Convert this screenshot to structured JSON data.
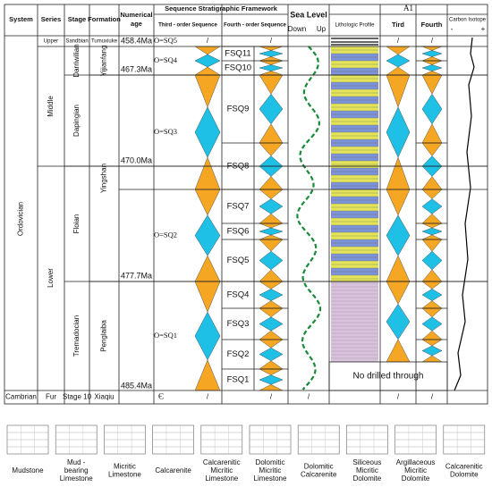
{
  "header": {
    "system": "System",
    "series": "Series",
    "stage": "Stage",
    "formation": "Formation",
    "numerical_age": [
      "Numerical",
      "age"
    ],
    "framework": "Sequence Stratigraphic Framework",
    "third_order": "Third - order Sequence",
    "fourth_order": "Fourth - order Sequence",
    "sea_level": "Sea Level",
    "down": "Down",
    "up": "Up",
    "well": "A1",
    "lithologic_profile": "Lithologic Profile",
    "tird": "Tird",
    "fourth": "Fourth",
    "carbon_isotope": "Carbon Isotope",
    "minus": "-",
    "plus": "+"
  },
  "system": "Ordovician",
  "series": [
    "Upper",
    "Middle",
    "Lower"
  ],
  "stages": [
    "Sandbian",
    "Darriwilian",
    "Dapingian",
    "Floian",
    "Tremadocian"
  ],
  "formations": [
    "Tumuxiuke",
    "Yijianfang",
    "Yingshan",
    "Penglaiba"
  ],
  "ages": [
    "458.4Ma",
    "467.3Ma",
    "470.0Ma",
    "477.7Ma",
    "485.4Ma"
  ],
  "third_order": [
    "O=SQ5",
    "O=SQ4",
    "O=SQ3",
    "O=SQ2",
    "O=SQ1"
  ],
  "fourth_order": [
    "FSQ11",
    "FSQ10",
    "FSQ9",
    "FSQ8",
    "FSQ7",
    "FSQ6",
    "FSQ5",
    "FSQ4",
    "FSQ3",
    "FSQ2",
    "FSQ1"
  ],
  "bottom_row": [
    "Cambrian",
    "Fur",
    "Stage 10",
    "Xiaqiu",
    "Є"
  ],
  "slash": "/",
  "note": "No drilled through",
  "legend": [
    [
      "Mudstone"
    ],
    [
      "Mud -",
      "bearing",
      "Limestone"
    ],
    [
      "Micritic",
      "Limestone"
    ],
    [
      "Calcarenite"
    ],
    [
      "Calcarenitic",
      "Micritic",
      "Limestone"
    ],
    [
      "Dolomitic",
      "Micritic",
      "Limestone"
    ],
    [
      "Dolomitic",
      "Calcarenite"
    ],
    [
      "Siliceous",
      "Micritic",
      "Dolomite"
    ],
    [
      "Argillaceous",
      "Micritic",
      "Dolomite"
    ],
    [
      "Calcarenitic",
      "Dolomite"
    ]
  ]
}
